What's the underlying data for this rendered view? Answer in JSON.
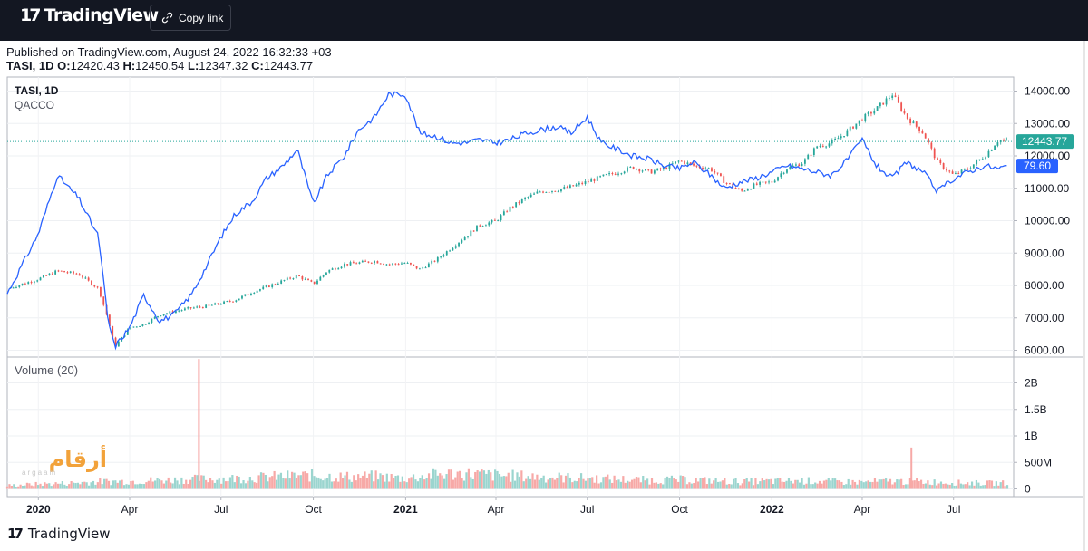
{
  "header": {
    "brand": "TradingView",
    "copy_link_label": "Copy link"
  },
  "published_text": "Published on TradingView.com, August 24, 2022 16:32:33 +03",
  "ohlc": {
    "symbol": "TASI, 1D",
    "o_label": "O:",
    "o": "12420.43",
    "h_label": "H:",
    "h": "12450.54",
    "l_label": "L:",
    "l": "12347.32",
    "c_label": "C:",
    "c": "12443.77"
  },
  "footer_brand": "TradingView",
  "watermark": {
    "text": "أرقام",
    "sub": "argaam"
  },
  "colors": {
    "up": "#26a69a",
    "down": "#ef5350",
    "compare": "#2962ff",
    "last_price": "#26a69a"
  },
  "chart_data": [
    {
      "type": "line",
      "title": "TASI, 1D",
      "compare_symbol": "QACCO",
      "x": [
        "2019-12-01",
        "2020-01-01",
        "2020-01-20",
        "2020-02-10",
        "2020-03-01",
        "2020-03-10",
        "2020-03-17",
        "2020-04-01",
        "2020-04-15",
        "2020-05-01",
        "2020-05-15",
        "2020-06-01",
        "2020-06-15",
        "2020-07-01",
        "2020-07-15",
        "2020-08-01",
        "2020-08-15",
        "2020-09-01",
        "2020-09-15",
        "2020-10-01",
        "2020-10-15",
        "2020-11-01",
        "2020-11-15",
        "2020-12-01",
        "2020-12-15",
        "2021-01-01",
        "2021-01-15",
        "2021-02-01",
        "2021-02-15",
        "2021-03-01",
        "2021-03-15",
        "2021-04-01",
        "2021-04-15",
        "2021-05-01",
        "2021-05-15",
        "2021-06-01",
        "2021-06-15",
        "2021-07-01",
        "2021-07-15",
        "2021-08-01",
        "2021-08-15",
        "2021-09-01",
        "2021-09-15",
        "2021-10-01",
        "2021-10-15",
        "2021-11-01",
        "2021-11-15",
        "2021-12-01",
        "2021-12-15",
        "2022-01-01",
        "2022-01-15",
        "2022-02-01",
        "2022-02-15",
        "2022-03-01",
        "2022-03-15",
        "2022-04-01",
        "2022-04-15",
        "2022-05-01",
        "2022-05-15",
        "2022-06-01",
        "2022-06-15",
        "2022-07-01",
        "2022-07-15",
        "2022-08-01",
        "2022-08-15",
        "2022-08-24"
      ],
      "series": [
        {
          "name": "TASI",
          "style": "candles",
          "values": [
            7900,
            8200,
            8450,
            8350,
            7900,
            7000,
            6100,
            6700,
            6800,
            7100,
            7200,
            7300,
            7350,
            7450,
            7550,
            7800,
            7950,
            8150,
            8300,
            8050,
            8450,
            8650,
            8700,
            8750,
            8650,
            8700,
            8500,
            8800,
            9150,
            9500,
            9850,
            10000,
            10400,
            10700,
            10900,
            10950,
            11050,
            11200,
            11350,
            11500,
            11650,
            11500,
            11600,
            11850,
            11700,
            11600,
            11200,
            10900,
            11100,
            11200,
            11600,
            11800,
            12300,
            12400,
            12700,
            13150,
            13450,
            13900,
            13200,
            12700,
            11800,
            11400,
            11600,
            12000,
            12500,
            12443.77
          ]
        },
        {
          "name": "QACCO",
          "style": "line",
          "values": [
            7750,
            9600,
            11400,
            10700,
            9500,
            7000,
            6100,
            6700,
            7700,
            6900,
            7100,
            7700,
            8500,
            9500,
            10200,
            10600,
            11300,
            11700,
            12200,
            10500,
            11400,
            12000,
            12800,
            13200,
            13900,
            13900,
            12700,
            12600,
            12400,
            12400,
            12500,
            12400,
            12500,
            12700,
            12800,
            12900,
            12700,
            13200,
            12400,
            12200,
            12000,
            11900,
            11700,
            11600,
            11800,
            11400,
            11000,
            11200,
            11300,
            11500,
            11700,
            11600,
            11500,
            11400,
            11800,
            12500,
            11700,
            11300,
            11800,
            11500,
            10900,
            11300,
            11500,
            11700,
            11600,
            11700
          ]
        }
      ],
      "last_price_label": "12443.77",
      "compare_last_label": "79.60",
      "ylim": [
        5700,
        14400
      ],
      "y_ticks": [
        "14000.00",
        "13000.00",
        "12000.00",
        "11000.00",
        "10000.00",
        "9000.00",
        "8000.00",
        "7000.00",
        "6000.00"
      ],
      "x_ticks": [
        "2020",
        "Apr",
        "Jul",
        "Oct",
        "2021",
        "Apr",
        "Jul",
        "Oct",
        "2022",
        "Apr",
        "Jul"
      ],
      "grid": true
    },
    {
      "type": "bar",
      "title": "Volume (20)",
      "x": [
        "2019-12",
        "2020-01",
        "2020-02",
        "2020-03",
        "2020-04",
        "2020-05",
        "2020-06",
        "2020-07",
        "2020-08",
        "2020-09",
        "2020-10",
        "2020-11",
        "2020-12",
        "2021-01",
        "2021-02",
        "2021-03",
        "2021-04",
        "2021-05",
        "2021-06",
        "2021-07",
        "2021-08",
        "2021-09",
        "2021-10",
        "2021-11",
        "2021-12",
        "2022-01",
        "2022-02",
        "2022-03",
        "2022-04",
        "2022-05",
        "2022-06",
        "2022-07",
        "2022-08"
      ],
      "values": [
        70,
        100,
        120,
        150,
        160,
        180,
        200,
        210,
        230,
        260,
        280,
        250,
        260,
        220,
        300,
        320,
        280,
        260,
        240,
        220,
        200,
        180,
        190,
        170,
        150,
        160,
        170,
        150,
        140,
        160,
        150,
        130,
        120
      ],
      "spikes": [
        {
          "x": "2020-06-09",
          "value": 2450
        },
        {
          "x": "2022-05-20",
          "value": 780
        }
      ],
      "y_ticks": [
        "2B",
        "1.5B",
        "1B",
        "500M",
        "0"
      ],
      "ylim": [
        0,
        2550
      ],
      "grid": true
    }
  ]
}
